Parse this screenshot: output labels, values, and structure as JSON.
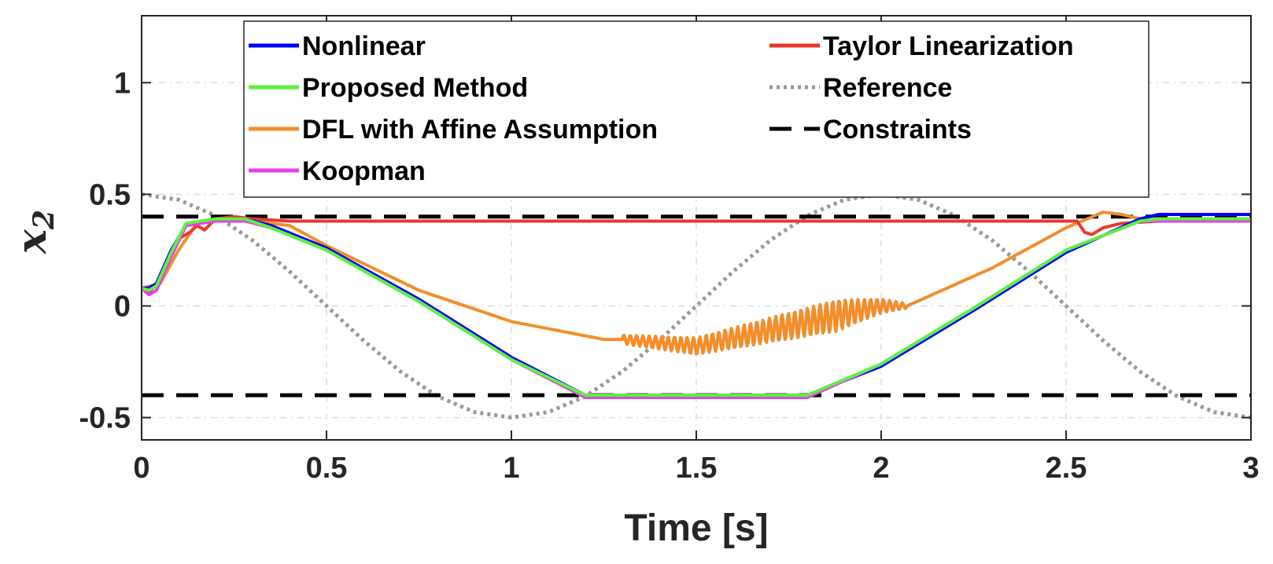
{
  "chart_data": {
    "type": "line",
    "xlabel": "Time [s]",
    "ylabel": {
      "main": "x",
      "sub": "2"
    },
    "xlim": [
      0,
      3
    ],
    "ylim": [
      -0.6,
      1.3
    ],
    "xticks": [
      0,
      0.5,
      1,
      1.5,
      2,
      2.5,
      3
    ],
    "xtick_labels": [
      "0",
      "0.5",
      "1",
      "1.5",
      "2",
      "2.5",
      "3"
    ],
    "yticks": [
      -0.5,
      0,
      0.5,
      1
    ],
    "ytick_labels": [
      "-0.5",
      "0",
      "0.5",
      "1"
    ],
    "grid": true,
    "legend_position": "top",
    "legend_columns": 2,
    "series": [
      {
        "name": "Nonlinear",
        "color": "#0000ff",
        "style": "solid",
        "x": [
          0,
          0.02,
          0.04,
          0.08,
          0.12,
          0.2,
          0.28,
          0.35,
          0.5,
          0.75,
          1.0,
          1.2,
          1.5,
          1.8,
          2.0,
          2.25,
          2.5,
          2.7,
          2.75,
          3.0
        ],
        "y": [
          0.08,
          0.08,
          0.1,
          0.25,
          0.36,
          0.39,
          0.39,
          0.36,
          0.26,
          0.03,
          -0.23,
          -0.4,
          -0.4,
          -0.4,
          -0.27,
          -0.02,
          0.24,
          0.39,
          0.41,
          0.41
        ]
      },
      {
        "name": "Taylor Linearization",
        "color": "#e8382c",
        "style": "solid",
        "x": [
          0,
          0.02,
          0.05,
          0.1,
          0.13,
          0.15,
          0.17,
          0.2,
          0.25,
          0.3,
          0.4,
          1.0,
          2.0,
          2.53,
          2.55,
          2.57,
          2.6,
          2.65,
          2.75,
          3.0
        ],
        "y": [
          0.08,
          0.06,
          0.12,
          0.3,
          0.33,
          0.36,
          0.34,
          0.39,
          0.4,
          0.39,
          0.38,
          0.38,
          0.38,
          0.38,
          0.33,
          0.32,
          0.35,
          0.37,
          0.38,
          0.38
        ]
      },
      {
        "name": "Proposed Method",
        "color": "#5cf23c",
        "style": "solid",
        "x": [
          0,
          0.02,
          0.04,
          0.08,
          0.12,
          0.2,
          0.28,
          0.35,
          0.5,
          0.75,
          1.0,
          1.2,
          1.5,
          1.8,
          2.0,
          2.25,
          2.5,
          2.7,
          2.75,
          3.0
        ],
        "y": [
          0.08,
          0.07,
          0.09,
          0.24,
          0.37,
          0.39,
          0.39,
          0.35,
          0.25,
          0.02,
          -0.24,
          -0.4,
          -0.4,
          -0.4,
          -0.26,
          -0.01,
          0.25,
          0.38,
          0.39,
          0.39
        ]
      },
      {
        "name": "Reference",
        "color": "#9a9a9a",
        "style": "dotted",
        "x": [
          0,
          0.1,
          0.2,
          0.3,
          0.4,
          0.5,
          0.6,
          0.7,
          0.8,
          0.9,
          1.0,
          1.1,
          1.2,
          1.3,
          1.4,
          1.5,
          1.6,
          1.7,
          1.8,
          1.9,
          2.0,
          2.1,
          2.2,
          2.3,
          2.4,
          2.5,
          2.6,
          2.7,
          2.8,
          2.9,
          3.0
        ],
        "y": [
          0.5,
          0.4755,
          0.4045,
          0.2939,
          0.1545,
          0.0,
          -0.1545,
          -0.2939,
          -0.4045,
          -0.4755,
          -0.5,
          -0.4755,
          -0.4045,
          -0.2939,
          -0.1545,
          0.0,
          0.1545,
          0.2939,
          0.4045,
          0.4755,
          0.5,
          0.4755,
          0.4045,
          0.2939,
          0.1545,
          0.0,
          -0.1545,
          -0.2939,
          -0.4045,
          -0.4755,
          -0.5
        ]
      },
      {
        "name": "DFL with Affine Assumption",
        "color": "#f28e2b",
        "style": "solid",
        "x": [
          0,
          0.05,
          0.1,
          0.15,
          0.2,
          0.3,
          0.4,
          0.5,
          0.75,
          1.0,
          1.25,
          1.3,
          1.5,
          1.75,
          2.0,
          2.07,
          2.3,
          2.5,
          2.6,
          2.65,
          2.7,
          3.0
        ],
        "y": [
          0.08,
          0.1,
          0.25,
          0.37,
          0.38,
          0.38,
          0.36,
          0.27,
          0.07,
          -0.07,
          -0.15,
          -0.15,
          -0.18,
          -0.09,
          0.0,
          0.0,
          0.17,
          0.35,
          0.42,
          0.41,
          0.39,
          0.39
        ],
        "oscillation": {
          "x_start": 1.3,
          "x_end": 2.07,
          "amplitude_start": 0.02,
          "amplitude_max": 0.07,
          "amplitude_end": 0.01,
          "cycles": 45
        }
      },
      {
        "name": "Constraints",
        "color": "#000000",
        "style": "dashed",
        "lines": [
          {
            "x": [
              0,
              3
            ],
            "y": [
              0.4,
              0.4
            ]
          },
          {
            "x": [
              0,
              3
            ],
            "y": [
              -0.4,
              -0.4
            ]
          }
        ]
      },
      {
        "name": "Koopman",
        "color": "#e83ee8",
        "style": "solid",
        "x": [
          0,
          0.02,
          0.04,
          0.08,
          0.12,
          0.2,
          0.28,
          0.35,
          0.5,
          0.75,
          1.0,
          1.2,
          1.5,
          1.8,
          2.0,
          2.25,
          2.5,
          2.7,
          2.75,
          3.0
        ],
        "y": [
          0.08,
          0.05,
          0.07,
          0.22,
          0.36,
          0.38,
          0.38,
          0.35,
          0.25,
          0.02,
          -0.24,
          -0.41,
          -0.41,
          -0.41,
          -0.26,
          -0.01,
          0.25,
          0.38,
          0.38,
          0.38
        ]
      }
    ],
    "legend_entries": [
      {
        "label": "Nonlinear",
        "color": "#0000ff",
        "style": "solid"
      },
      {
        "label": "Taylor Linearization",
        "color": "#e8382c",
        "style": "solid"
      },
      {
        "label": "Proposed Method",
        "color": "#5cf23c",
        "style": "solid"
      },
      {
        "label": "Reference",
        "color": "#9a9a9a",
        "style": "dotted"
      },
      {
        "label": "DFL with Affine Assumption",
        "color": "#f28e2b",
        "style": "solid"
      },
      {
        "label": "Constraints",
        "color": "#000000",
        "style": "dashed"
      },
      {
        "label": "Koopman",
        "color": "#e83ee8",
        "style": "solid"
      }
    ]
  }
}
